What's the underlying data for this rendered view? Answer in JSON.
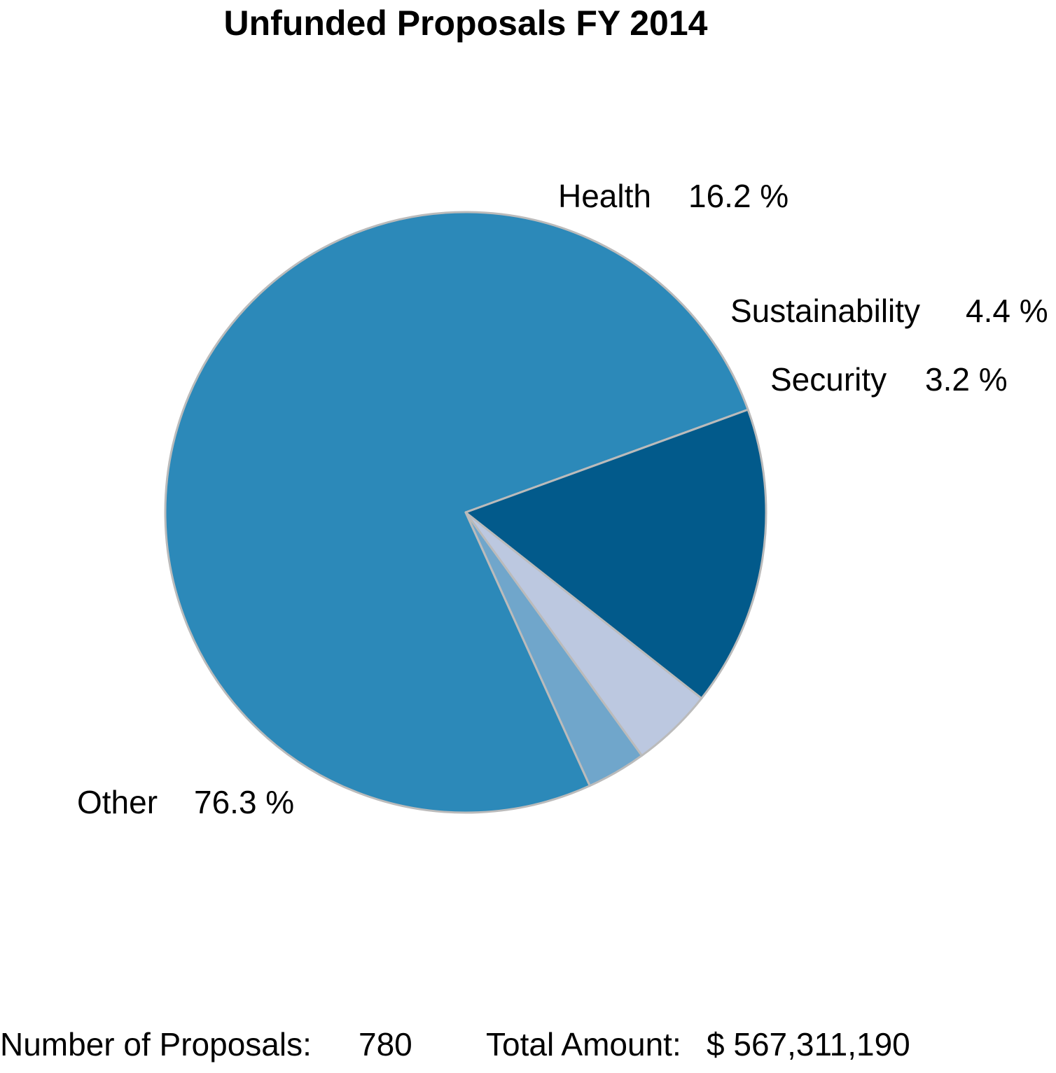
{
  "chart_data": {
    "type": "pie",
    "title": "Unfunded Proposals FY 2014",
    "start_angle_deg": 20,
    "direction": "counterclockwise",
    "slices": [
      {
        "label": "Other",
        "percent_text": "76.3 %",
        "value": 76.3,
        "color": "#2c89b9"
      },
      {
        "label": "Security",
        "percent_text": "3.2 %",
        "value": 3.2,
        "color": "#70a6cb"
      },
      {
        "label": "Sustainability",
        "percent_text": "4.4 %",
        "value": 4.4,
        "color": "#bcc8e0"
      },
      {
        "label": "Health",
        "percent_text": "16.2 %",
        "value": 16.2,
        "color": "#025a8b"
      }
    ],
    "edge_color": "#bbbbbb"
  },
  "footer": {
    "count_label": "Number of Proposals:",
    "count_value": "780",
    "amount_label": "Total Amount:",
    "amount_value": "$ 567,311,190"
  }
}
